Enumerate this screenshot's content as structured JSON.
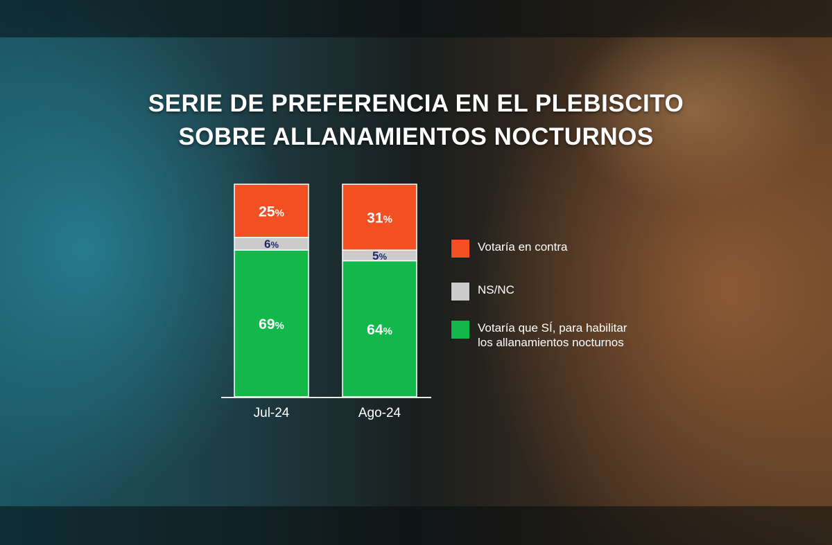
{
  "title_line1": "SERIE DE PREFERENCIA EN EL PLEBISCITO",
  "title_line2": "SOBRE ALLANAMIENTOS NOCTURNOS",
  "chart_data": {
    "type": "bar",
    "stacked": true,
    "title": "SERIE DE PREFERENCIA EN EL PLEBISCITO SOBRE ALLANAMIENTOS NOCTURNOS",
    "categories": [
      "Jul-24",
      "Ago-24"
    ],
    "series": [
      {
        "name": "Votaría que SÍ, para habilitar los allanamientos nocturnos",
        "values": [
          69,
          64
        ],
        "color": "#12b84a"
      },
      {
        "name": "NS/NC",
        "values": [
          6,
          5
        ],
        "color": "#cbcbcb"
      },
      {
        "name": "Votaría en contra",
        "values": [
          25,
          31
        ],
        "color": "#f25022"
      }
    ],
    "unit": "%",
    "ylim": [
      0,
      100
    ],
    "grid": false,
    "legend_position": "right"
  },
  "legend": [
    {
      "label": "Votaría en contra",
      "color": "#f25022",
      "icon": "orange-square"
    },
    {
      "label": "NS/NC",
      "color": "#cbcbcb",
      "icon": "gray-square"
    },
    {
      "label": "Votaría que SÍ, para habilitar\nlos allanamientos nocturnos",
      "color": "#12b84a",
      "icon": "green-square"
    }
  ],
  "colors": {
    "label_dark": "#1d2a66",
    "label_light": "#ffffff"
  }
}
